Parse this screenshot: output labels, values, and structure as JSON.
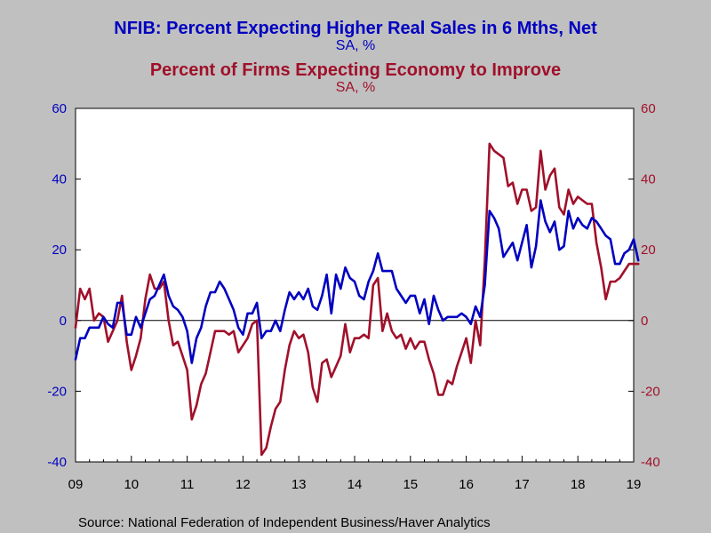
{
  "chart_data": {
    "type": "line",
    "titles": [
      {
        "text": "NFIB: Percent Expecting Higher Real Sales in 6 Mths, Net",
        "sub": "SA, %",
        "color": "#0000c0"
      },
      {
        "text": "Percent of Firms Expecting Economy to Improve",
        "sub": "SA, %",
        "color": "#a0102a"
      }
    ],
    "source": "Source:  National Federation of Independent Business/Haver Analytics",
    "x_ticks": [
      "09",
      "10",
      "11",
      "12",
      "13",
      "14",
      "15",
      "16",
      "17",
      "18",
      "19"
    ],
    "y_left": {
      "min": -40,
      "max": 60,
      "ticks": [
        "60",
        "40",
        "20",
        "0",
        "-20",
        "-40"
      ],
      "color": "#0000c0"
    },
    "y_right": {
      "min": -40,
      "max": 60,
      "ticks": [
        "60",
        "40",
        "20",
        "0",
        "-20",
        "-40"
      ],
      "color": "#a0102a"
    },
    "x_range": [
      2009.0,
      2019.0
    ],
    "grid": false,
    "zero_line": true,
    "series": [
      {
        "axis": "left",
        "color": "#0000c0",
        "points": [
          [
            2009.0,
            -11
          ],
          [
            2009.083,
            -5
          ],
          [
            2009.167,
            -5
          ],
          [
            2009.25,
            -2
          ],
          [
            2009.333,
            -2
          ],
          [
            2009.417,
            -2
          ],
          [
            2009.5,
            1
          ],
          [
            2009.583,
            -1
          ],
          [
            2009.667,
            -2
          ],
          [
            2009.75,
            5
          ],
          [
            2009.833,
            5
          ],
          [
            2009.917,
            -4
          ],
          [
            2010.0,
            -4
          ],
          [
            2010.083,
            1
          ],
          [
            2010.167,
            -2
          ],
          [
            2010.25,
            2
          ],
          [
            2010.333,
            6
          ],
          [
            2010.417,
            7
          ],
          [
            2010.5,
            10
          ],
          [
            2010.583,
            13
          ],
          [
            2010.667,
            7
          ],
          [
            2010.75,
            4
          ],
          [
            2010.833,
            3
          ],
          [
            2010.917,
            1
          ],
          [
            2011.0,
            -3
          ],
          [
            2011.083,
            -12
          ],
          [
            2011.167,
            -5
          ],
          [
            2011.25,
            -2
          ],
          [
            2011.333,
            4
          ],
          [
            2011.417,
            8
          ],
          [
            2011.5,
            8
          ],
          [
            2011.583,
            11
          ],
          [
            2011.667,
            9
          ],
          [
            2011.75,
            6
          ],
          [
            2011.833,
            3
          ],
          [
            2011.917,
            -2
          ],
          [
            2012.0,
            -4
          ],
          [
            2012.083,
            2
          ],
          [
            2012.167,
            2
          ],
          [
            2012.25,
            5
          ],
          [
            2012.333,
            -5
          ],
          [
            2012.417,
            -3
          ],
          [
            2012.5,
            -3
          ],
          [
            2012.583,
            0
          ],
          [
            2012.667,
            -3
          ],
          [
            2012.75,
            3
          ],
          [
            2012.833,
            8
          ],
          [
            2012.917,
            6
          ],
          [
            2013.0,
            8
          ],
          [
            2013.083,
            6
          ],
          [
            2013.167,
            9
          ],
          [
            2013.25,
            4
          ],
          [
            2013.333,
            3
          ],
          [
            2013.417,
            7
          ],
          [
            2013.5,
            13
          ],
          [
            2013.583,
            2
          ],
          [
            2013.667,
            13
          ],
          [
            2013.75,
            9
          ],
          [
            2013.833,
            15
          ],
          [
            2013.917,
            12
          ],
          [
            2014.0,
            11
          ],
          [
            2014.083,
            7
          ],
          [
            2014.167,
            6
          ],
          [
            2014.25,
            11
          ],
          [
            2014.333,
            14
          ],
          [
            2014.417,
            19
          ],
          [
            2014.5,
            14
          ],
          [
            2014.583,
            14
          ],
          [
            2014.667,
            14
          ],
          [
            2014.75,
            9
          ],
          [
            2014.833,
            7
          ],
          [
            2014.917,
            5
          ],
          [
            2015.0,
            7
          ],
          [
            2015.083,
            7
          ],
          [
            2015.167,
            2
          ],
          [
            2015.25,
            6
          ],
          [
            2015.333,
            -1
          ],
          [
            2015.417,
            7
          ],
          [
            2015.5,
            3
          ],
          [
            2015.583,
            0
          ],
          [
            2015.667,
            1
          ],
          [
            2015.75,
            1
          ],
          [
            2015.833,
            1
          ],
          [
            2015.917,
            2
          ],
          [
            2016.0,
            1
          ],
          [
            2016.083,
            -1
          ],
          [
            2016.167,
            4
          ],
          [
            2016.25,
            1
          ],
          [
            2016.333,
            10
          ],
          [
            2016.417,
            31
          ],
          [
            2016.5,
            29
          ],
          [
            2016.583,
            26
          ],
          [
            2016.667,
            18
          ],
          [
            2016.75,
            20
          ],
          [
            2016.833,
            22
          ],
          [
            2016.917,
            17
          ],
          [
            2017.0,
            22
          ],
          [
            2017.083,
            27
          ],
          [
            2017.167,
            15
          ],
          [
            2017.25,
            21
          ],
          [
            2017.333,
            34
          ],
          [
            2017.417,
            28
          ],
          [
            2017.5,
            25
          ],
          [
            2017.583,
            28
          ],
          [
            2017.667,
            20
          ],
          [
            2017.75,
            21
          ],
          [
            2017.833,
            31
          ],
          [
            2017.917,
            26
          ],
          [
            2018.0,
            29
          ],
          [
            2018.083,
            27
          ],
          [
            2018.167,
            26
          ],
          [
            2018.25,
            29
          ],
          [
            2018.333,
            28
          ],
          [
            2018.417,
            26
          ],
          [
            2018.5,
            24
          ],
          [
            2018.583,
            23
          ],
          [
            2018.667,
            16
          ],
          [
            2018.75,
            16
          ],
          [
            2018.833,
            19
          ],
          [
            2018.917,
            20
          ],
          [
            2019.0,
            23
          ],
          [
            2019.083,
            17
          ]
        ]
      },
      {
        "axis": "right",
        "color": "#a0102a",
        "points": [
          [
            2009.0,
            -2
          ],
          [
            2009.083,
            9
          ],
          [
            2009.167,
            6
          ],
          [
            2009.25,
            9
          ],
          [
            2009.333,
            0
          ],
          [
            2009.417,
            2
          ],
          [
            2009.5,
            1
          ],
          [
            2009.583,
            -6
          ],
          [
            2009.667,
            -3
          ],
          [
            2009.75,
            0
          ],
          [
            2009.833,
            7
          ],
          [
            2009.917,
            -6
          ],
          [
            2010.0,
            -14
          ],
          [
            2010.083,
            -10
          ],
          [
            2010.167,
            -5
          ],
          [
            2010.25,
            6
          ],
          [
            2010.333,
            13
          ],
          [
            2010.417,
            9
          ],
          [
            2010.5,
            9
          ],
          [
            2010.583,
            11
          ],
          [
            2010.667,
            0
          ],
          [
            2010.75,
            -7
          ],
          [
            2010.833,
            -6
          ],
          [
            2010.917,
            -10
          ],
          [
            2011.0,
            -14
          ],
          [
            2011.083,
            -28
          ],
          [
            2011.167,
            -24
          ],
          [
            2011.25,
            -18
          ],
          [
            2011.333,
            -15
          ],
          [
            2011.417,
            -9
          ],
          [
            2011.5,
            -3
          ],
          [
            2011.583,
            -3
          ],
          [
            2011.667,
            -3
          ],
          [
            2011.75,
            -4
          ],
          [
            2011.833,
            -3
          ],
          [
            2011.917,
            -9
          ],
          [
            2012.0,
            -7
          ],
          [
            2012.083,
            -5
          ],
          [
            2012.167,
            -1
          ],
          [
            2012.25,
            0
          ],
          [
            2012.333,
            -38
          ],
          [
            2012.417,
            -36
          ],
          [
            2012.5,
            -30
          ],
          [
            2012.583,
            -25
          ],
          [
            2012.667,
            -23
          ],
          [
            2012.75,
            -14
          ],
          [
            2012.833,
            -7
          ],
          [
            2012.917,
            -3
          ],
          [
            2013.0,
            -5
          ],
          [
            2013.083,
            -4
          ],
          [
            2013.167,
            -9
          ],
          [
            2013.25,
            -19
          ],
          [
            2013.333,
            -23
          ],
          [
            2013.417,
            -12
          ],
          [
            2013.5,
            -11
          ],
          [
            2013.583,
            -16
          ],
          [
            2013.667,
            -13
          ],
          [
            2013.75,
            -10
          ],
          [
            2013.833,
            -1
          ],
          [
            2013.917,
            -9
          ],
          [
            2014.0,
            -5
          ],
          [
            2014.083,
            -5
          ],
          [
            2014.167,
            -4
          ],
          [
            2014.25,
            -5
          ],
          [
            2014.333,
            10
          ],
          [
            2014.417,
            12
          ],
          [
            2014.5,
            -3
          ],
          [
            2014.583,
            2
          ],
          [
            2014.667,
            -3
          ],
          [
            2014.75,
            -5
          ],
          [
            2014.833,
            -4
          ],
          [
            2014.917,
            -8
          ],
          [
            2015.0,
            -5
          ],
          [
            2015.083,
            -8
          ],
          [
            2015.167,
            -6
          ],
          [
            2015.25,
            -6
          ],
          [
            2015.333,
            -11
          ],
          [
            2015.417,
            -15
          ],
          [
            2015.5,
            -21
          ],
          [
            2015.583,
            -21
          ],
          [
            2015.667,
            -17
          ],
          [
            2015.75,
            -18
          ],
          [
            2015.833,
            -13
          ],
          [
            2015.917,
            -9
          ],
          [
            2016.0,
            -5
          ],
          [
            2016.083,
            -12
          ],
          [
            2016.167,
            0
          ],
          [
            2016.25,
            -7
          ],
          [
            2016.333,
            17
          ],
          [
            2016.417,
            50
          ],
          [
            2016.5,
            48
          ],
          [
            2016.583,
            47
          ],
          [
            2016.667,
            46
          ],
          [
            2016.75,
            38
          ],
          [
            2016.833,
            39
          ],
          [
            2016.917,
            33
          ],
          [
            2017.0,
            37
          ],
          [
            2017.083,
            37
          ],
          [
            2017.167,
            31
          ],
          [
            2017.25,
            32
          ],
          [
            2017.333,
            48
          ],
          [
            2017.417,
            37
          ],
          [
            2017.5,
            41
          ],
          [
            2017.583,
            43
          ],
          [
            2017.667,
            32
          ],
          [
            2017.75,
            30
          ],
          [
            2017.833,
            37
          ],
          [
            2017.917,
            33
          ],
          [
            2018.0,
            35
          ],
          [
            2018.083,
            34
          ],
          [
            2018.167,
            33
          ],
          [
            2018.25,
            33
          ],
          [
            2018.333,
            22
          ],
          [
            2018.417,
            15
          ],
          [
            2018.5,
            6
          ],
          [
            2018.583,
            11
          ],
          [
            2018.667,
            11
          ],
          [
            2018.75,
            12
          ],
          [
            2018.833,
            14
          ],
          [
            2018.917,
            16
          ],
          [
            2019.0,
            16
          ],
          [
            2019.083,
            16
          ]
        ]
      }
    ]
  }
}
